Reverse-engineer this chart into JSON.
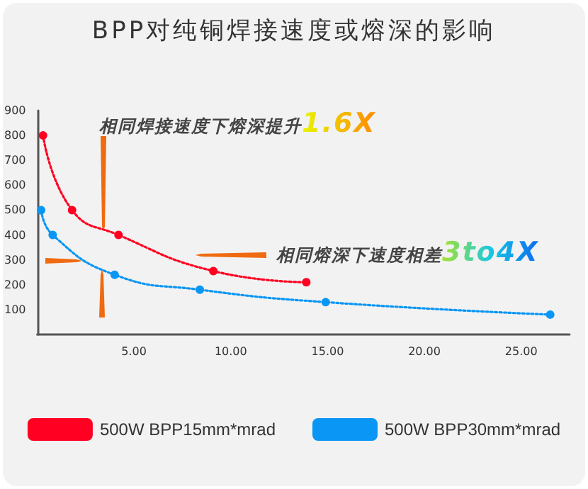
{
  "chart_data": {
    "type": "line",
    "title": "BPP对纯铜焊接速度或熔深的影响",
    "annotations": [
      "相同焊接速度下熔深提升1.6X",
      "相同熔深下速度相差3to4X"
    ],
    "series": [
      {
        "name": "500W BPP15mm*mrad",
        "color": "#ff0022",
        "x": [
          0.3,
          1.8,
          4.2,
          9.1,
          13.9
        ],
        "values": [
          800,
          500,
          400,
          255,
          210
        ]
      },
      {
        "name": "500W BPP30mm*mrad",
        "color": "#0a96f5",
        "x": [
          0.2,
          0.8,
          4.0,
          8.4,
          14.9,
          26.5
        ],
        "values": [
          500,
          400,
          240,
          180,
          130,
          80
        ]
      }
    ],
    "xlim": [
      0,
      27.5
    ],
    "xticks": [
      {
        "value": 5,
        "label": "5.00"
      },
      {
        "value": 10,
        "label": "10.00"
      },
      {
        "value": 15,
        "label": "15.00"
      },
      {
        "value": 20,
        "label": "20.00"
      },
      {
        "value": 25,
        "label": "25.00"
      }
    ],
    "ylim": [
      0,
      900
    ],
    "yticks": [
      100,
      200,
      300,
      400,
      500,
      600,
      700,
      800,
      900
    ],
    "grid": false,
    "legend": "bottom",
    "marker": "circle",
    "line_style": "dotted"
  }
}
